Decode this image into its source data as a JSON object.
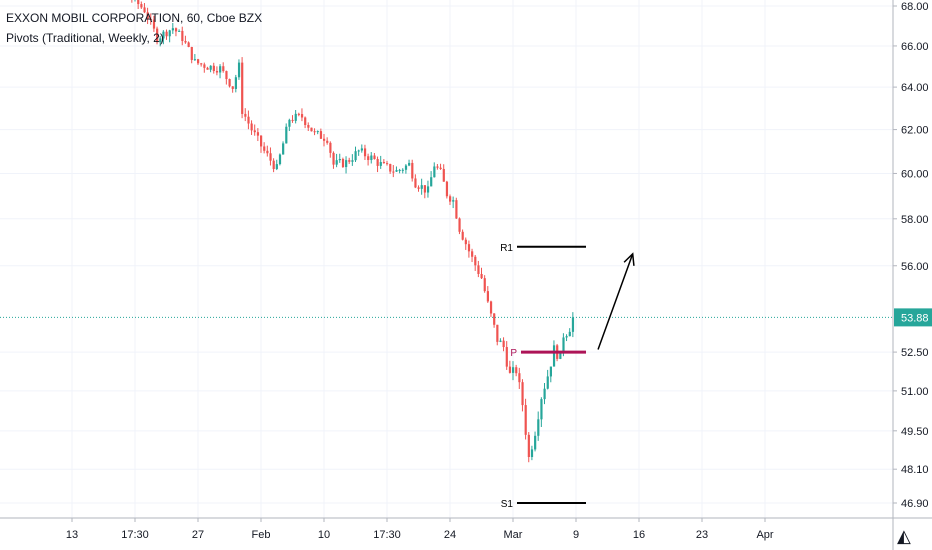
{
  "header": {
    "title": "EXXON MOBIL CORPORATION, 60, Cboe BZX",
    "indicator": "Pivots (Traditional, Weekly, 2)"
  },
  "colors": {
    "up": "#26a69a",
    "down": "#ef5350",
    "pivot": "#ad1457",
    "level": "#000000",
    "price_line": "#26a69a",
    "grid": "#f0f3fa",
    "axis_text": "#131722"
  },
  "chart_data": {
    "type": "candlestick",
    "symbol": "XOM",
    "interval": "60",
    "exchange": "Cboe BZX",
    "y_axis": {
      "scale": "log",
      "range": [
        45.8,
        69.4
      ],
      "ticks": [
        "68.00",
        "66.00",
        "64.00",
        "62.00",
        "60.00",
        "58.00",
        "56.00",
        "52.50",
        "51.00",
        "49.50",
        "48.10",
        "46.90"
      ]
    },
    "x_axis": {
      "tick_labels": [
        "13",
        "17:30",
        "27",
        "Feb",
        "10",
        "17:30",
        "24",
        "Mar",
        "9",
        "16",
        "23",
        "Apr"
      ],
      "tick_positions_bars": [
        0,
        20,
        40,
        60,
        80,
        100,
        120,
        140,
        160,
        180,
        200,
        220
      ]
    },
    "last_price": "53.88",
    "price_path": [
      [
        0,
        70.2
      ],
      [
        16,
        69.0
      ],
      [
        24,
        67.8
      ],
      [
        28,
        66.4
      ],
      [
        33,
        66.9
      ],
      [
        36,
        66.4
      ],
      [
        40,
        65.2
      ],
      [
        44,
        65.0
      ],
      [
        48,
        64.9
      ],
      [
        52,
        64.0
      ],
      [
        54,
        65.0
      ],
      [
        55,
        62.9
      ],
      [
        58,
        62.0
      ],
      [
        62,
        61.0
      ],
      [
        66,
        60.2
      ],
      [
        70,
        62.5
      ],
      [
        74,
        62.6
      ],
      [
        78,
        61.8
      ],
      [
        82,
        61.6
      ],
      [
        84,
        60.4
      ],
      [
        88,
        60.5
      ],
      [
        92,
        61.0
      ],
      [
        96,
        60.7
      ],
      [
        100,
        60.3
      ],
      [
        104,
        60.1
      ],
      [
        108,
        60.4
      ],
      [
        110,
        59.6
      ],
      [
        114,
        59.2
      ],
      [
        116,
        60.4
      ],
      [
        118,
        60.0
      ],
      [
        120,
        59.1
      ],
      [
        122,
        58.8
      ],
      [
        124,
        57.6
      ],
      [
        128,
        56.3
      ],
      [
        131,
        55.5
      ],
      [
        133,
        54.4
      ],
      [
        136,
        53.0
      ],
      [
        138,
        52.7
      ],
      [
        140,
        51.6
      ],
      [
        142,
        51.8
      ],
      [
        144,
        50.5
      ],
      [
        146,
        48.5
      ],
      [
        148,
        49.5
      ],
      [
        150,
        50.8
      ],
      [
        152,
        51.6
      ],
      [
        154,
        52.6
      ],
      [
        156,
        52.3
      ],
      [
        157,
        53.2
      ],
      [
        158,
        53.3
      ],
      [
        159,
        53.88
      ]
    ],
    "pivot_levels": [
      {
        "label": "R1",
        "value": 56.8
      },
      {
        "label": "P",
        "value": 52.5
      },
      {
        "label": "S1",
        "value": 46.9
      }
    ],
    "annotations": [
      {
        "type": "arrow",
        "from": {
          "bar": 167,
          "price": 52.6
        },
        "to": {
          "bar": 178,
          "price": 56.5
        }
      }
    ],
    "grid": true,
    "legend": "top-left"
  }
}
